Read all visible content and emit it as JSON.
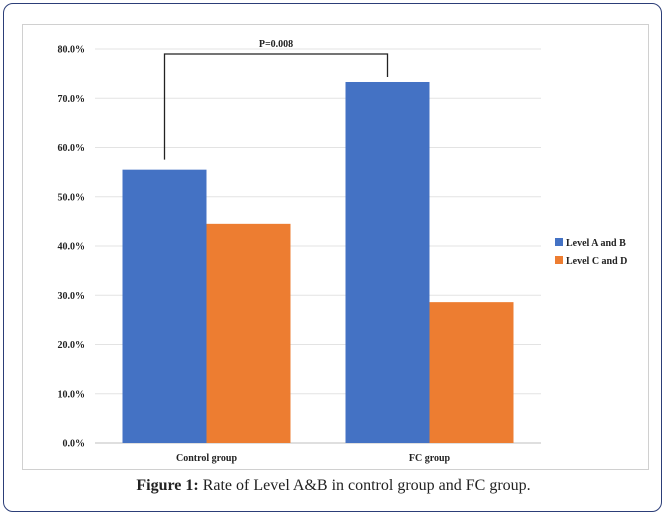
{
  "caption": {
    "label": "Figure 1:",
    "text": "Rate of Level A&B in control group and FC group."
  },
  "chart_data": {
    "type": "bar",
    "title": "",
    "xlabel": "",
    "ylabel": "",
    "categories": [
      "Control group",
      "FC group"
    ],
    "series": [
      {
        "name": "Level A and B",
        "values": [
          55.5,
          73.3
        ],
        "color": "#4472c4"
      },
      {
        "name": "Level C and D",
        "values": [
          44.5,
          28.6
        ],
        "color": "#ed7d31"
      }
    ],
    "ylim": [
      0,
      80
    ],
    "yticks": [
      "0.0%",
      "10.0%",
      "20.0%",
      "30.0%",
      "40.0%",
      "50.0%",
      "60.0%",
      "70.0%",
      "80.0%"
    ],
    "grid": true,
    "legend": "right",
    "annotation": {
      "text": "P=0.008"
    }
  }
}
